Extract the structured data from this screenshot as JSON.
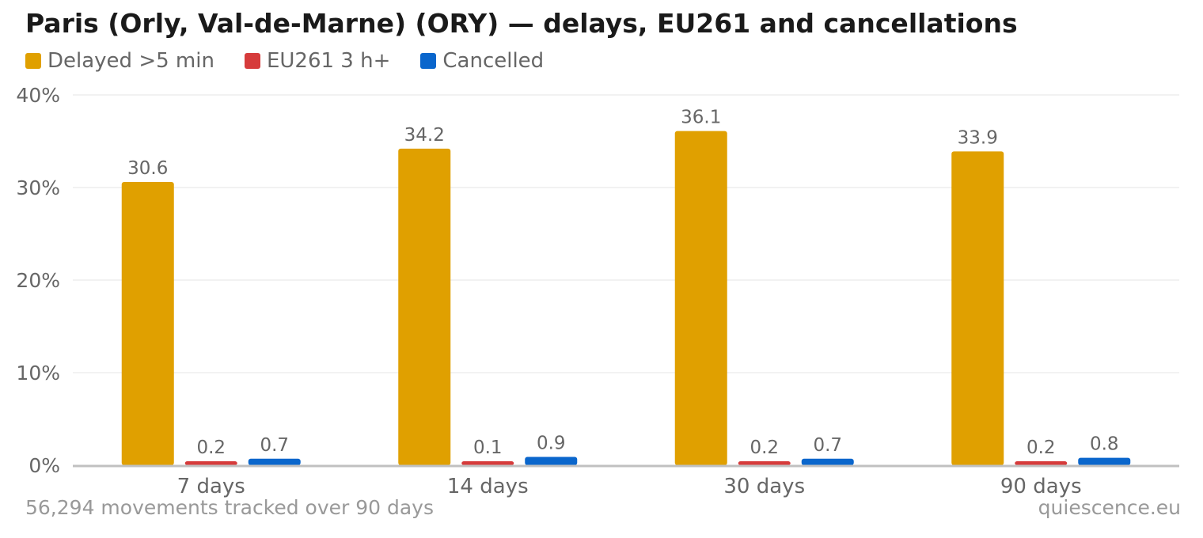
{
  "footer": {
    "note": "56,294 movements tracked over 90 days",
    "brand": "quiescence.eu"
  },
  "chart_data": {
    "type": "bar",
    "title": "Paris (Orly, Val-de-Marne) (ORY) — delays, EU261 and cancellations",
    "xlabel": "",
    "ylabel": "",
    "categories": [
      "7 days",
      "14 days",
      "30 days",
      "90 days"
    ],
    "series": [
      {
        "name": "Delayed >5 min",
        "color": "#e0a000",
        "values": [
          30.6,
          34.2,
          36.1,
          33.9
        ]
      },
      {
        "name": "EU261 3 h+",
        "color": "#d63b3b",
        "values": [
          0.2,
          0.1,
          0.2,
          0.2
        ]
      },
      {
        "name": "Cancelled",
        "color": "#0a66cc",
        "values": [
          0.7,
          0.9,
          0.7,
          0.8
        ]
      }
    ],
    "ylim": [
      0,
      40
    ],
    "yticks": [
      0,
      10,
      20,
      30,
      40
    ],
    "ytick_labels": [
      "0%",
      "10%",
      "20%",
      "30%",
      "40%"
    ],
    "grid": true,
    "legend": "top-left"
  }
}
